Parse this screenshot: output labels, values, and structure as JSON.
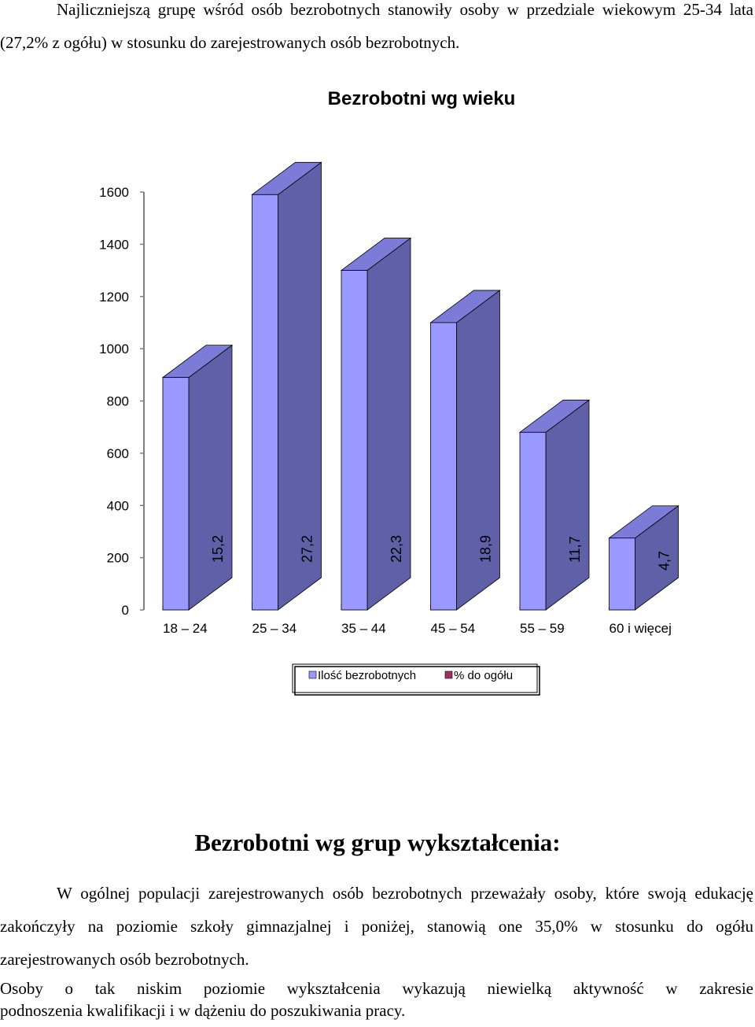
{
  "intro_text": "Najliczniejszą grupę wśród osób bezrobotnych stanowiły osoby w przedziale wiekowym 25-34 lata (27,2% z ogółu) w stosunku do zarejestrowanych osób bezrobotnych.",
  "chart_data": {
    "type": "bar",
    "title": "Bezrobotni wg wieku",
    "categories": [
      "18 – 24",
      "25 – 34",
      "35 – 44",
      "45 – 54",
      "55 – 59",
      "60 i więcej"
    ],
    "series": [
      {
        "name": "Ilość bezrobotnych",
        "values": [
          890,
          1590,
          1300,
          1100,
          680,
          275
        ]
      },
      {
        "name": "% do ogółu",
        "values": [
          15.2,
          27.2,
          22.3,
          18.9,
          11.7,
          4.7
        ]
      }
    ],
    "percent_labels": [
      "15,2",
      "27,2",
      "22,3",
      "18,9",
      "11,7",
      "4,7"
    ],
    "ylim": [
      0,
      1600
    ],
    "yticks": [
      0,
      200,
      400,
      600,
      800,
      1000,
      1200,
      1400,
      1600
    ],
    "legend_position": "bottom",
    "colors": {
      "count_front": "#9999FF",
      "count_side": "#6060A8",
      "count_top": "#7C7CD8",
      "pct_front": "#993366",
      "pct_top": "#7A1F4C",
      "pct_side": "#6A1A40"
    }
  },
  "section_heading": "Bezrobotni wg grup wykształcenia:",
  "paragraph_2": "W ogólnej populacji zarejestrowanych osób bezrobotnych przeważały osoby, które swoją edukację zakończyły na poziomie szkoły gimnazjalnej i poniżej, stanowią one 35,0% w stosunku do ogółu zarejestrowanych osób bezrobotnych.",
  "paragraph_3_line1": "Osoby o tak niskim poziomie wykształcenia wykazują niewielką aktywność w zakresie",
  "paragraph_3_line2": "podnoszenia kwalifikacji i w dążeniu do poszukiwania pracy."
}
